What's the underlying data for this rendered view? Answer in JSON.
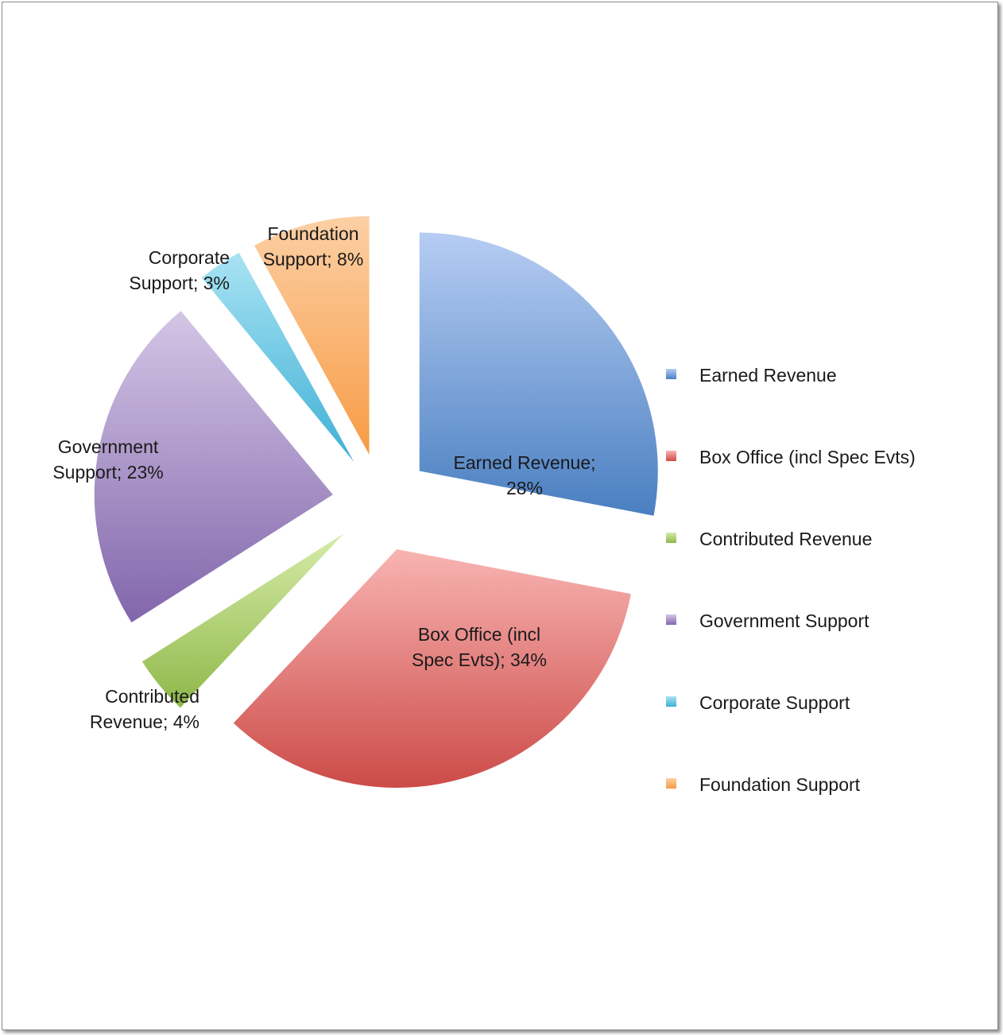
{
  "chart_data": {
    "type": "pie",
    "title": "",
    "exploded": true,
    "legend_position": "right",
    "slices": [
      {
        "label": "Earned Revenue",
        "value": 28,
        "display": "Earned Revenue; 28%",
        "lines": [
          "Earned Revenue;",
          "28%"
        ],
        "color": "#4a7fc1",
        "color_light": "#b6cdf3"
      },
      {
        "label": "Box Office (incl Spec Evts)",
        "value": 34,
        "display": "Box Office (incl Spec Evts); 34%",
        "lines": [
          "Box Office (incl",
          "Spec Evts); 34%"
        ],
        "color": "#cc4b48",
        "color_light": "#f8b4b2"
      },
      {
        "label": "Contributed Revenue",
        "value": 4,
        "display": "Contributed Revenue; 4%",
        "lines": [
          "Contributed",
          "Revenue; 4%"
        ],
        "color": "#8fb84a",
        "color_light": "#d6eba8"
      },
      {
        "label": "Government Support",
        "value": 23,
        "display": "Government Support; 23%",
        "lines": [
          "Government",
          "Support; 23%"
        ],
        "color": "#8166ab",
        "color_light": "#d4c6e6"
      },
      {
        "label": "Corporate Support",
        "value": 3,
        "display": "Corporate Support; 3%",
        "lines": [
          "Corporate",
          "Support; 3%"
        ],
        "color": "#3fb0d6",
        "color_light": "#a9e3f3"
      },
      {
        "label": "Foundation Support",
        "value": 8,
        "display": "Foundation Support; 8%",
        "lines": [
          "Foundation",
          "Support; 8%"
        ],
        "color": "#f79b45",
        "color_light": "#fcd0a5"
      }
    ]
  }
}
